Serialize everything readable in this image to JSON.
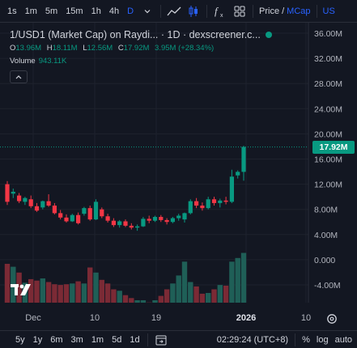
{
  "toolbar": {
    "timeframes": [
      "1s",
      "1m",
      "5m",
      "15m",
      "1h",
      "4h",
      "D"
    ],
    "active_timeframe": "D",
    "price_label": "Price",
    "separator": "/",
    "mcap_label": "MCap",
    "currency_label": "US"
  },
  "legend": {
    "title": "1/USD1 (Market Cap) on Raydi... · 1D · dexscreener.c...",
    "o_label": "O",
    "o_value": "13.96M",
    "h_label": "H",
    "h_value": "18.11M",
    "l_label": "L",
    "l_value": "12.56M",
    "c_label": "C",
    "c_value": "17.92M",
    "change": "3.95M (+28.34%)",
    "volume_label": "Volume",
    "volume_value": "943.11K"
  },
  "colors": {
    "up": "#089981",
    "down": "#f23645",
    "up_volume": "#1f5f57",
    "down_volume": "#7b2a35",
    "background": "#131722",
    "grid": "#1e222d",
    "accent": "#2962ff"
  },
  "chart_data": {
    "type": "candlestick",
    "y_ticks": [
      "36.00M",
      "32.00M",
      "28.00M",
      "24.00M",
      "20.00M",
      "16.00M",
      "12.00M",
      "8.00M",
      "4.00M",
      "0.000",
      "-4.00M"
    ],
    "y_range": [
      -6,
      38
    ],
    "last_price_label": "17.92M",
    "x_ticks": [
      "Dec",
      "10",
      "19",
      "2026",
      "10"
    ],
    "candles": [
      {
        "o": 12.0,
        "h": 12.5,
        "l": 8.7,
        "c": 9.2
      },
      {
        "o": 10.5,
        "h": 11.3,
        "l": 9.8,
        "c": 10.8
      },
      {
        "o": 10.2,
        "h": 10.6,
        "l": 9.0,
        "c": 9.3
      },
      {
        "o": 9.2,
        "h": 10.0,
        "l": 8.7,
        "c": 9.8
      },
      {
        "o": 9.6,
        "h": 10.2,
        "l": 8.2,
        "c": 8.5
      },
      {
        "o": 8.5,
        "h": 9.0,
        "l": 7.6,
        "c": 7.8
      },
      {
        "o": 8.3,
        "h": 9.4,
        "l": 8.0,
        "c": 9.3
      },
      {
        "o": 9.3,
        "h": 10.4,
        "l": 8.4,
        "c": 8.6
      },
      {
        "o": 8.6,
        "h": 9.0,
        "l": 7.2,
        "c": 7.4
      },
      {
        "o": 7.4,
        "h": 7.9,
        "l": 6.4,
        "c": 6.7
      },
      {
        "o": 6.7,
        "h": 7.2,
        "l": 5.9,
        "c": 6.1
      },
      {
        "o": 6.1,
        "h": 7.3,
        "l": 6.0,
        "c": 7.1
      },
      {
        "o": 7.1,
        "h": 7.5,
        "l": 5.6,
        "c": 5.8
      },
      {
        "o": 7.3,
        "h": 8.4,
        "l": 7.0,
        "c": 8.2
      },
      {
        "o": 8.2,
        "h": 8.6,
        "l": 6.2,
        "c": 6.4
      },
      {
        "o": 6.4,
        "h": 9.6,
        "l": 6.3,
        "c": 9.2
      },
      {
        "o": 8.0,
        "h": 8.3,
        "l": 6.6,
        "c": 6.9
      },
      {
        "o": 6.9,
        "h": 7.3,
        "l": 5.9,
        "c": 6.2
      },
      {
        "o": 6.2,
        "h": 6.6,
        "l": 5.2,
        "c": 5.5
      },
      {
        "o": 5.5,
        "h": 6.3,
        "l": 5.1,
        "c": 6.1
      },
      {
        "o": 6.1,
        "h": 6.4,
        "l": 5.2,
        "c": 5.4
      },
      {
        "o": 5.4,
        "h": 5.8,
        "l": 4.8,
        "c": 5.1
      },
      {
        "o": 5.1,
        "h": 5.6,
        "l": 4.6,
        "c": 5.3
      },
      {
        "o": 5.3,
        "h": 6.8,
        "l": 5.2,
        "c": 6.5
      },
      {
        "o": 6.5,
        "h": 7.0,
        "l": 5.8,
        "c": 6.2
      },
      {
        "o": 6.2,
        "h": 7.0,
        "l": 6.0,
        "c": 6.8
      },
      {
        "o": 6.8,
        "h": 7.1,
        "l": 6.0,
        "c": 6.3
      },
      {
        "o": 6.3,
        "h": 6.6,
        "l": 5.6,
        "c": 6.0
      },
      {
        "o": 6.0,
        "h": 6.8,
        "l": 5.8,
        "c": 6.6
      },
      {
        "o": 6.6,
        "h": 7.3,
        "l": 6.2,
        "c": 7.0
      },
      {
        "o": 6.4,
        "h": 7.5,
        "l": 5.9,
        "c": 7.4
      },
      {
        "o": 7.4,
        "h": 9.6,
        "l": 7.2,
        "c": 9.3
      },
      {
        "o": 9.3,
        "h": 9.8,
        "l": 8.2,
        "c": 8.6
      },
      {
        "o": 8.6,
        "h": 9.1,
        "l": 7.8,
        "c": 8.2
      },
      {
        "o": 8.2,
        "h": 10.0,
        "l": 8.0,
        "c": 9.6
      },
      {
        "o": 9.6,
        "h": 10.0,
        "l": 8.6,
        "c": 9.0
      },
      {
        "o": 9.0,
        "h": 9.7,
        "l": 8.3,
        "c": 9.4
      },
      {
        "o": 9.4,
        "h": 10.0,
        "l": 8.8,
        "c": 9.2
      },
      {
        "o": 9.2,
        "h": 14.3,
        "l": 9.0,
        "c": 13.2
      },
      {
        "o": 13.4,
        "h": 14.2,
        "l": 12.9,
        "c": 13.96
      },
      {
        "o": 13.96,
        "h": 18.11,
        "l": 12.56,
        "c": 17.92
      }
    ],
    "volume": [
      0.6,
      0.56,
      0.48,
      0.34,
      0.39,
      0.37,
      0.4,
      0.35,
      0.32,
      0.31,
      0.32,
      0.33,
      0.36,
      0.33,
      0.55,
      0.48,
      0.38,
      0.33,
      0.25,
      0.23,
      0.17,
      0.13,
      0.1,
      0.1,
      0.07,
      0.1,
      0.16,
      0.25,
      0.33,
      0.44,
      0.63,
      0.35,
      0.29,
      0.19,
      0.2,
      0.25,
      0.31,
      0.3,
      0.63,
      0.68,
      0.75
    ],
    "volume_max_ratio": 1.0
  },
  "bottombar": {
    "ranges": [
      "5y",
      "1y",
      "6m",
      "3m",
      "1m",
      "5d",
      "1d"
    ],
    "time": "02:29:24 (UTC+8)",
    "percent": "%",
    "log": "log",
    "auto": "auto"
  }
}
